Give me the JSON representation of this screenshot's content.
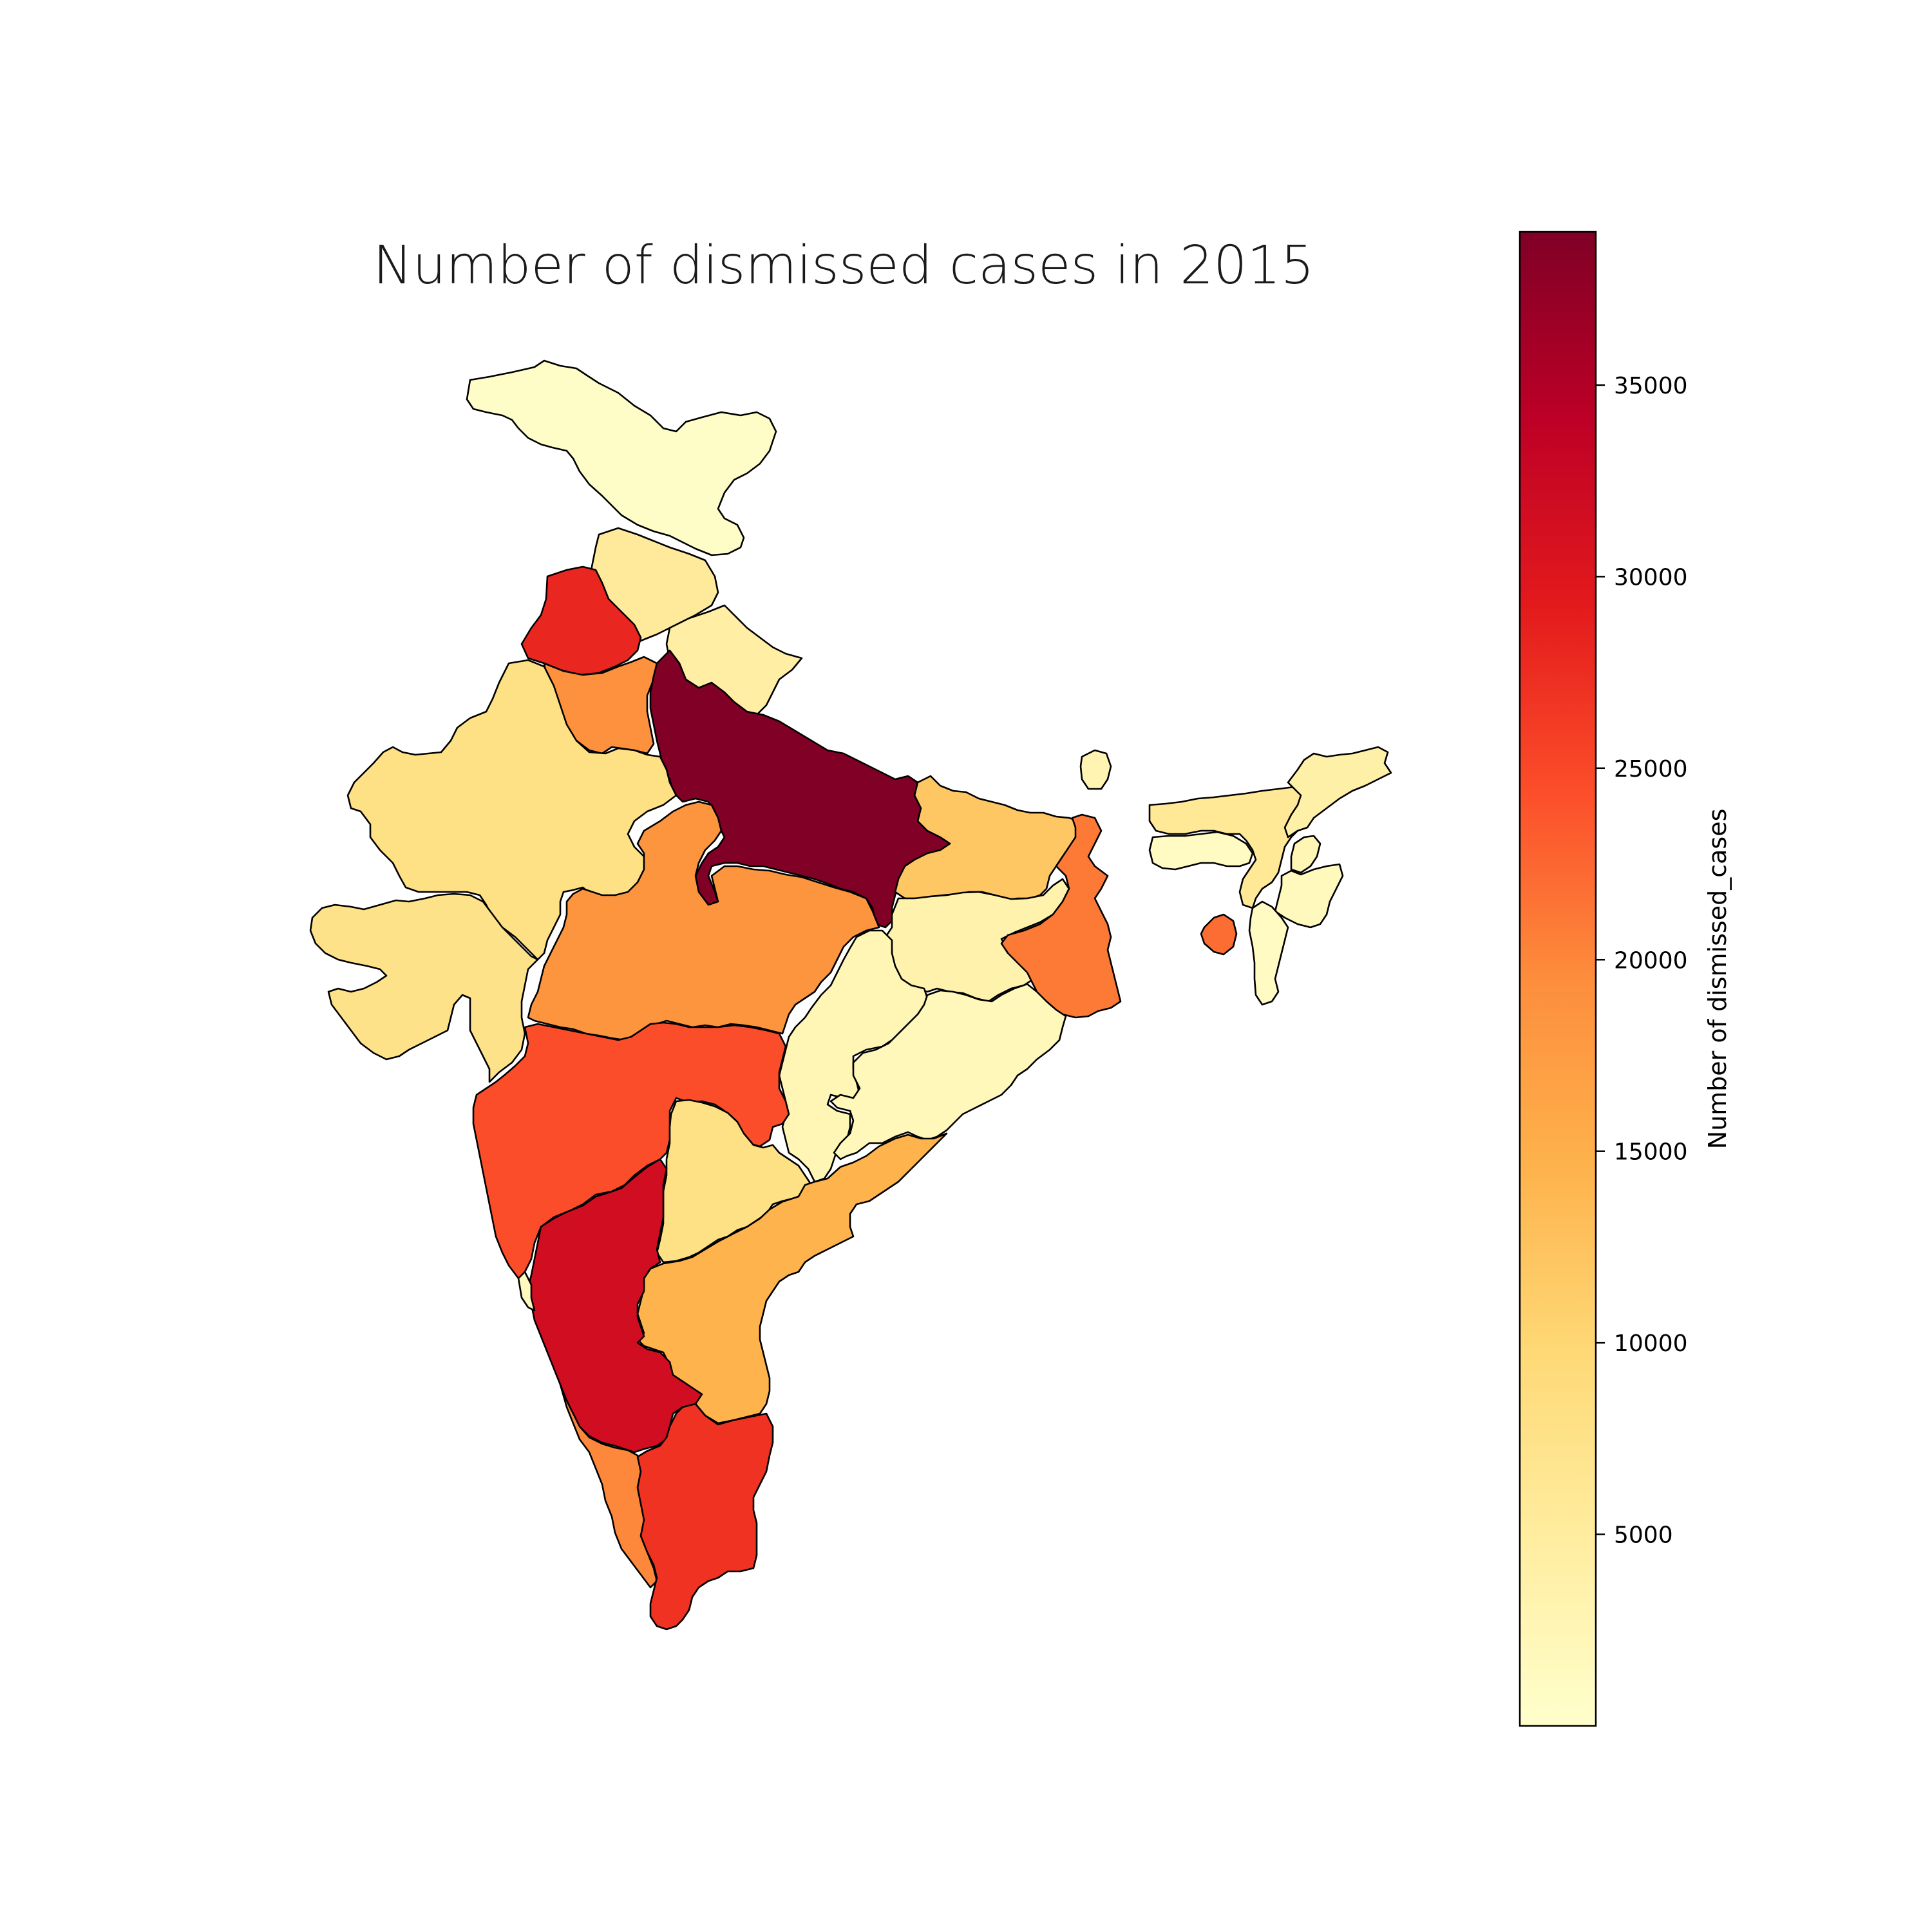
{
  "chart_data": {
    "type": "choropleth",
    "title": "Number of dismissed cases in 2015",
    "colorbar": {
      "label": "Number of dismissed_cases",
      "colormap": "YlOrRd",
      "min": 0,
      "max": 39000,
      "ticks": [
        5000,
        10000,
        15000,
        20000,
        25000,
        30000,
        35000
      ],
      "tick_labels": [
        "5000",
        "10000",
        "15000",
        "20000",
        "25000",
        "30000",
        "35000"
      ],
      "stops": [
        "#ffffcc",
        "#ffeda0",
        "#fed976",
        "#feb24c",
        "#fd8d3c",
        "#fc4e2a",
        "#e31a1c",
        "#bd0026",
        "#800026"
      ]
    },
    "regions": [
      {
        "id": "jammu-kashmir",
        "value": 500
      },
      {
        "id": "himachal-pradesh",
        "value": 5500
      },
      {
        "id": "punjab",
        "value": 28000
      },
      {
        "id": "haryana",
        "value": 19000
      },
      {
        "id": "uttarakhand",
        "value": 4500
      },
      {
        "id": "uttar-pradesh",
        "value": 39000
      },
      {
        "id": "rajasthan",
        "value": 8000
      },
      {
        "id": "gujarat",
        "value": 7500
      },
      {
        "id": "madhya-pradesh",
        "value": 18500
      },
      {
        "id": "bihar",
        "value": 12000
      },
      {
        "id": "jharkhand",
        "value": 3500
      },
      {
        "id": "west-bengal",
        "value": 21000
      },
      {
        "id": "chhattisgarh",
        "value": 2500
      },
      {
        "id": "odisha",
        "value": 2000
      },
      {
        "id": "maharashtra",
        "value": 24500
      },
      {
        "id": "telangana",
        "value": 8000
      },
      {
        "id": "andhra-pradesh",
        "value": 14500
      },
      {
        "id": "karnataka",
        "value": 31500
      },
      {
        "id": "goa",
        "value": 1500
      },
      {
        "id": "kerala",
        "value": 20000
      },
      {
        "id": "tamil-nadu",
        "value": 27000
      },
      {
        "id": "sikkim",
        "value": 3000
      },
      {
        "id": "assam",
        "value": 6000
      },
      {
        "id": "arunachal-pradesh",
        "value": 4000
      },
      {
        "id": "meghalaya",
        "value": 1000
      },
      {
        "id": "nagaland",
        "value": 2500
      },
      {
        "id": "manipur",
        "value": 1500
      },
      {
        "id": "mizoram",
        "value": 1000
      },
      {
        "id": "tripura",
        "value": 22000
      }
    ]
  }
}
